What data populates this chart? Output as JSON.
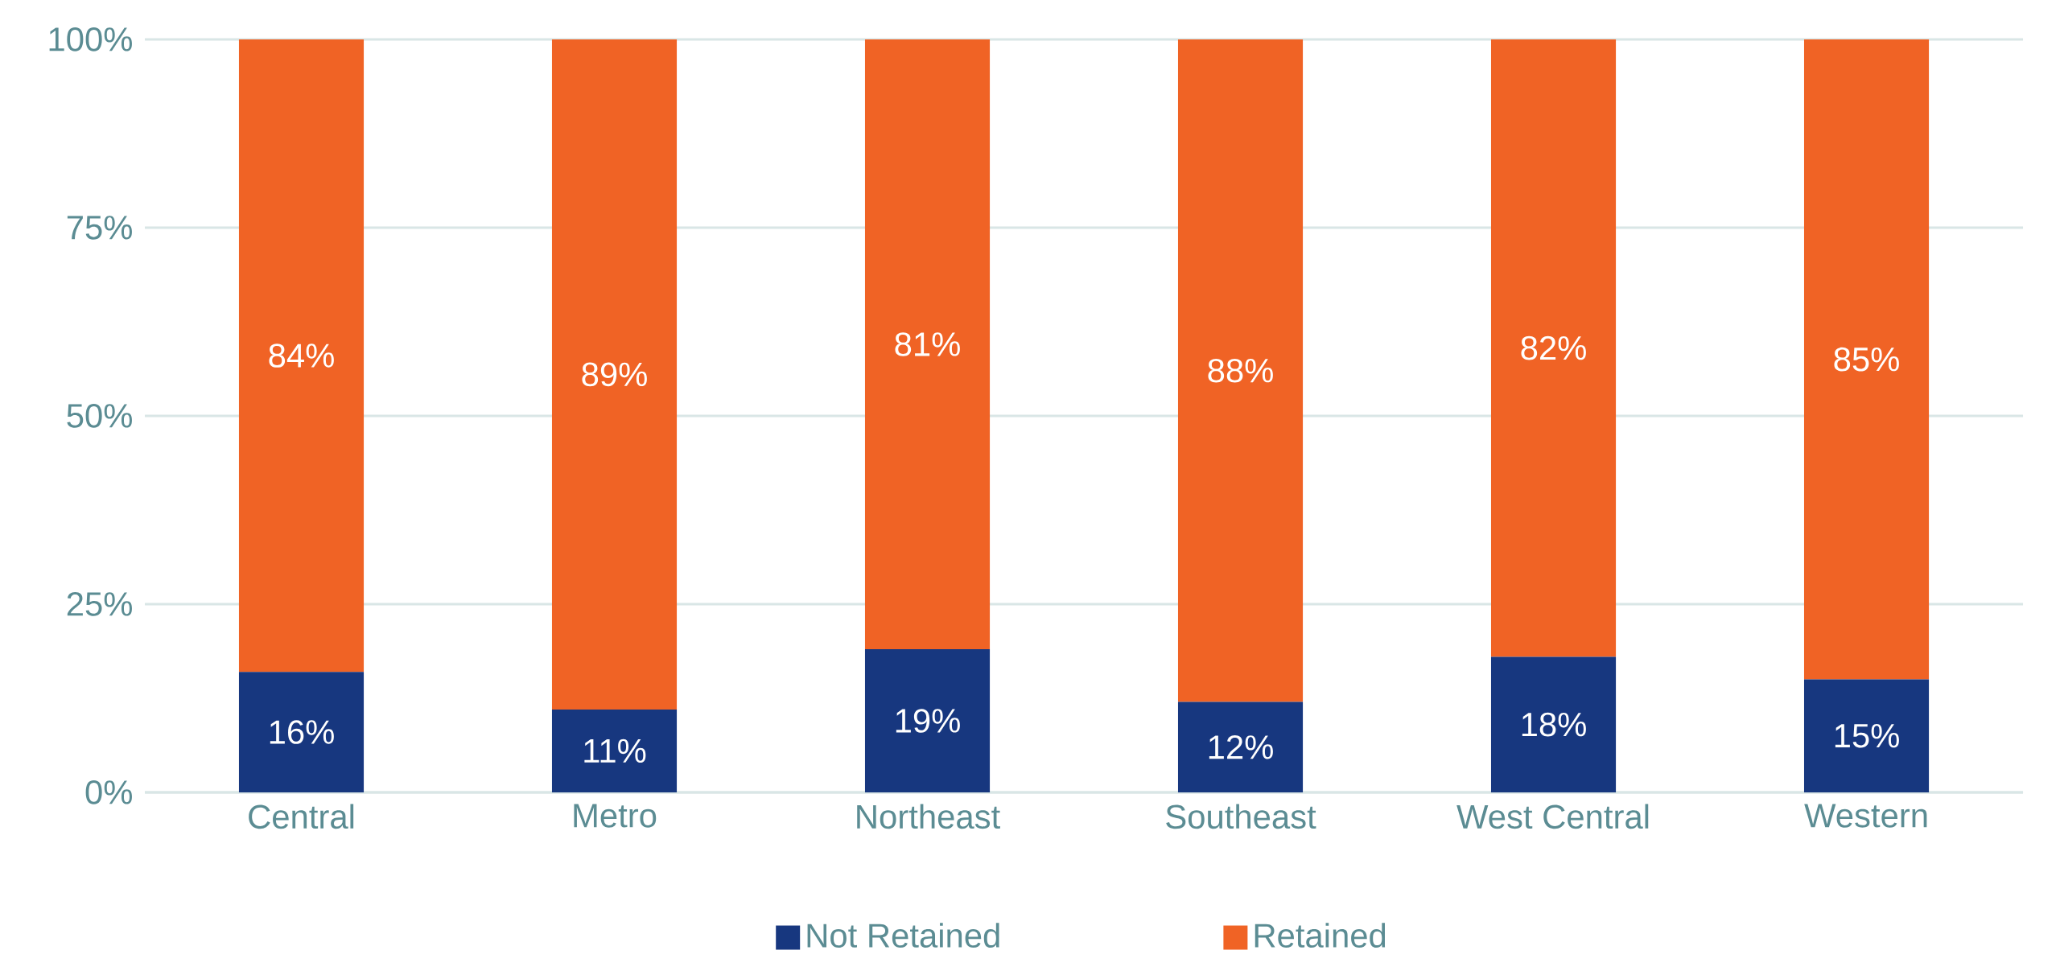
{
  "chart_data": {
    "type": "bar",
    "stacked": true,
    "categories": [
      "Central",
      "Metro",
      "Northeast",
      "Southeast",
      "West Central",
      "Western"
    ],
    "series": [
      {
        "name": "Not Retained",
        "color": "#17377f",
        "values": [
          16,
          11,
          19,
          12,
          18,
          15
        ],
        "value_labels": [
          "16%",
          "11%",
          "19%",
          "12%",
          "18%",
          "15%"
        ]
      },
      {
        "name": "Retained",
        "color": "#f06325",
        "values": [
          84,
          89,
          81,
          88,
          82,
          85
        ],
        "value_labels": [
          "84%",
          "89%",
          "81%",
          "88%",
          "82%",
          "85%"
        ]
      }
    ],
    "ylim": [
      0,
      100
    ],
    "yticks": [
      {
        "value": 0,
        "label": "0%"
      },
      {
        "value": 25,
        "label": "25%"
      },
      {
        "value": 50,
        "label": "50%"
      },
      {
        "value": 75,
        "label": "75%"
      },
      {
        "value": 100,
        "label": "100%"
      }
    ],
    "grid": "y",
    "legend": "bottom"
  }
}
